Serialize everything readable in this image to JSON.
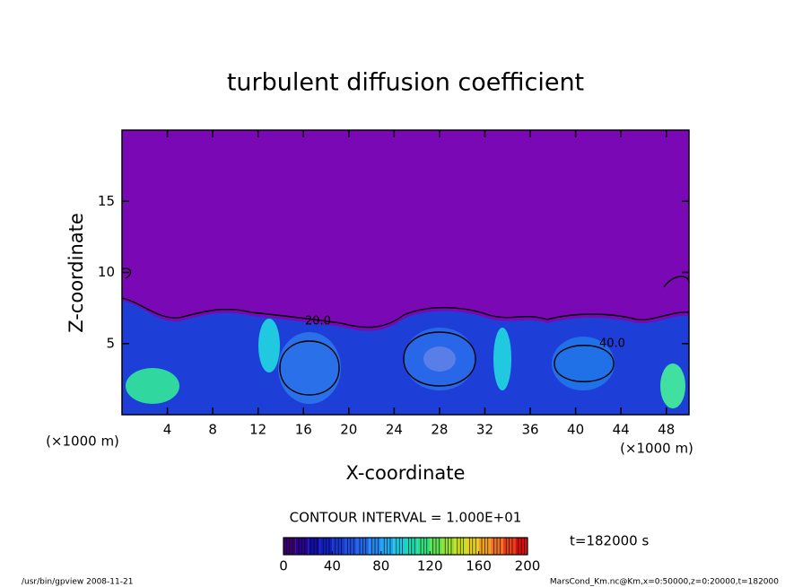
{
  "chart_data": {
    "type": "contour",
    "title": "turbulent diffusion coefficient",
    "x_label": "X-coordinate",
    "y_label": "Z-coordinate",
    "x_unit": "(×1000 m)",
    "y_unit": "(×1000 m)",
    "xlim": [
      0,
      50
    ],
    "xticks": [
      4,
      8,
      12,
      16,
      20,
      24,
      28,
      32,
      36,
      40,
      44,
      48
    ],
    "ylim": [
      0,
      20
    ],
    "yticks": [
      5,
      10,
      15
    ],
    "contour_interval": "CONTOUR INTERVAL = 1.000E+01",
    "time": "t=182000 s",
    "contour_labels": [
      "20.0",
      "40.0"
    ],
    "colorbar": {
      "lim": [
        0,
        200
      ],
      "ticks": [
        0,
        40,
        80,
        120,
        160,
        200
      ],
      "colors": [
        "#3a0070",
        "#2a0090",
        "#1010a8",
        "#1020c0",
        "#1838d0",
        "#2050e0",
        "#2068e8",
        "#2088f0",
        "#20a8f0",
        "#20c8e0",
        "#20d8b0",
        "#30e080",
        "#60e050",
        "#98e030",
        "#c8e020",
        "#e8d020",
        "#f0a020",
        "#f07020",
        "#e84018",
        "#d81010"
      ]
    }
  },
  "footer": {
    "left": "/usr/bin/gpview  2008-11-21",
    "right": "MarsCond_Km.nc@Km,x=0:50000,z=0:20000,t=182000"
  }
}
